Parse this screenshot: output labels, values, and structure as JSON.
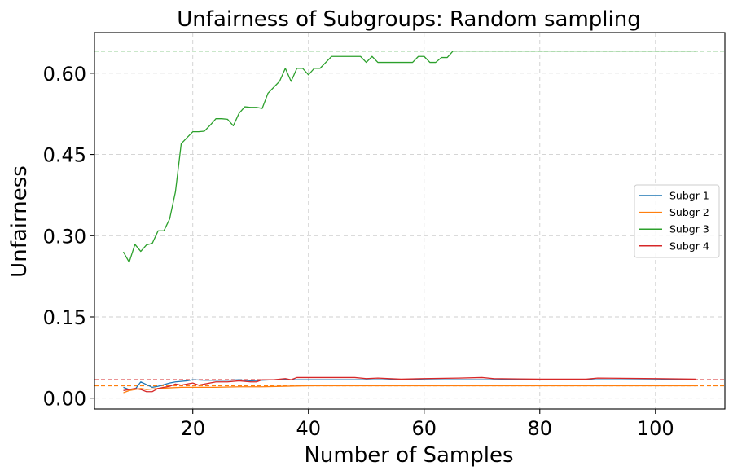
{
  "chart_data": {
    "type": "line",
    "title": "Unfairness of Subgroups: Random sampling",
    "xlabel": "Number of Samples",
    "ylabel": "Unfairness",
    "xlim": [
      3,
      112
    ],
    "ylim": [
      -0.02,
      0.675
    ],
    "xticks": [
      20,
      40,
      60,
      80,
      100
    ],
    "yticks": [
      0.0,
      0.15,
      0.3,
      0.45,
      0.6
    ],
    "ytick_labels": [
      "0.00",
      "0.15",
      "0.30",
      "0.45",
      "0.60"
    ],
    "grid": true,
    "legend_position": "center-right",
    "series": [
      {
        "name": "Subgr 1",
        "color": "#1f77b4",
        "x": [
          8,
          9,
          10,
          11,
          12,
          13,
          14,
          15,
          16,
          17,
          18,
          19,
          20,
          22,
          24,
          26,
          28,
          30,
          32,
          34,
          36,
          38,
          40,
          45,
          50,
          60,
          70,
          80,
          90,
          100,
          107
        ],
        "y": [
          0.02,
          0.016,
          0.016,
          0.03,
          0.025,
          0.02,
          0.022,
          0.025,
          0.028,
          0.03,
          0.031,
          0.032,
          0.034,
          0.033,
          0.033,
          0.033,
          0.034,
          0.032,
          0.033,
          0.034,
          0.034,
          0.034,
          0.034,
          0.034,
          0.034,
          0.034,
          0.034,
          0.034,
          0.034,
          0.034,
          0.034
        ]
      },
      {
        "name": "Subgr 2",
        "color": "#ff7f0e",
        "x": [
          8,
          9,
          10,
          11,
          12,
          14,
          16,
          18,
          20,
          24,
          28,
          32,
          36,
          40,
          50,
          60,
          70,
          80,
          90,
          100,
          107
        ],
        "y": [
          0.01,
          0.014,
          0.016,
          0.018,
          0.016,
          0.018,
          0.019,
          0.02,
          0.02,
          0.02,
          0.021,
          0.021,
          0.022,
          0.023,
          0.023,
          0.023,
          0.023,
          0.023,
          0.023,
          0.023,
          0.023
        ]
      },
      {
        "name": "Subgr 3",
        "color": "#2ca02c",
        "x": [
          8,
          9,
          10,
          11,
          12,
          13,
          14,
          15,
          16,
          17,
          18,
          19,
          20,
          21,
          22,
          23,
          24,
          25,
          26,
          27,
          28,
          29,
          30,
          31,
          32,
          33,
          34,
          35,
          36,
          37,
          38,
          39,
          40,
          41,
          42,
          43,
          44,
          45,
          46,
          47,
          48,
          49,
          50,
          51,
          52,
          53,
          54,
          55,
          56,
          57,
          58,
          59,
          60,
          61,
          62,
          63,
          64,
          65,
          66,
          70,
          80,
          90,
          100,
          107
        ],
        "y": [
          0.27,
          0.251,
          0.284,
          0.271,
          0.283,
          0.286,
          0.309,
          0.309,
          0.331,
          0.381,
          0.47,
          0.481,
          0.492,
          0.492,
          0.493,
          0.504,
          0.516,
          0.516,
          0.515,
          0.503,
          0.526,
          0.538,
          0.537,
          0.537,
          0.535,
          0.563,
          0.574,
          0.585,
          0.609,
          0.585,
          0.609,
          0.609,
          0.597,
          0.609,
          0.609,
          0.62,
          0.631,
          0.631,
          0.631,
          0.631,
          0.631,
          0.631,
          0.62,
          0.631,
          0.62,
          0.62,
          0.62,
          0.62,
          0.62,
          0.62,
          0.62,
          0.631,
          0.631,
          0.62,
          0.62,
          0.629,
          0.629,
          0.641,
          0.641,
          0.641,
          0.641,
          0.641,
          0.641,
          0.641
        ]
      },
      {
        "name": "Subgr 4",
        "color": "#d62728",
        "x": [
          8,
          9,
          10,
          11,
          12,
          13,
          14,
          15,
          16,
          17,
          18,
          19,
          20,
          21,
          22,
          24,
          26,
          28,
          30,
          31,
          32,
          34,
          36,
          37,
          38,
          40,
          44,
          48,
          50,
          52,
          56,
          60,
          66,
          70,
          72,
          80,
          88,
          90,
          100,
          107
        ],
        "y": [
          0.014,
          0.016,
          0.018,
          0.016,
          0.012,
          0.012,
          0.018,
          0.02,
          0.022,
          0.026,
          0.024,
          0.026,
          0.028,
          0.024,
          0.026,
          0.03,
          0.03,
          0.032,
          0.03,
          0.03,
          0.034,
          0.034,
          0.036,
          0.034,
          0.038,
          0.038,
          0.038,
          0.038,
          0.036,
          0.037,
          0.035,
          0.036,
          0.037,
          0.038,
          0.036,
          0.035,
          0.035,
          0.037,
          0.036,
          0.035
        ]
      }
    ],
    "reference_lines": [
      {
        "color": "#2ca02c",
        "y": 0.641
      },
      {
        "color": "#d62728",
        "y": 0.034
      },
      {
        "color": "#ff7f0e",
        "y": 0.023
      }
    ]
  }
}
